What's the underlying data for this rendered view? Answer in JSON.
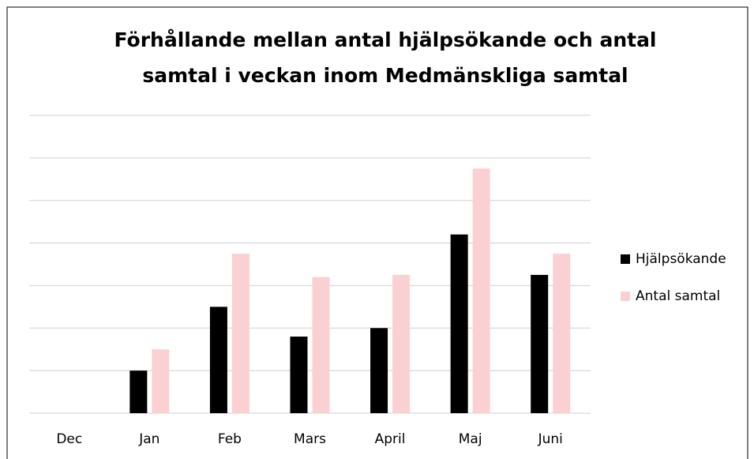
{
  "chart_data": {
    "type": "bar",
    "title": [
      "Förhållande mellan antal hjälpsökande och antal",
      "samtal i veckan inom Medmänskliga samtal"
    ],
    "categories": [
      "Dec",
      "Jan",
      "Feb",
      "Mars",
      "April",
      "Maj",
      "Juni"
    ],
    "series": [
      {
        "name": "Hjälpsökande",
        "color": "#000000",
        "values": [
          0,
          1,
          2.5,
          1.8,
          2,
          4.2,
          3.25
        ]
      },
      {
        "name": "Antal samtal",
        "color": "#fbd0d2",
        "values": [
          0,
          1.5,
          3.75,
          3.2,
          3.25,
          5.75,
          3.75
        ]
      }
    ],
    "ylim": [
      0,
      7
    ],
    "yticks": [
      0,
      1,
      2,
      3,
      4,
      5,
      6,
      7
    ],
    "grid": true,
    "legend": "right"
  }
}
